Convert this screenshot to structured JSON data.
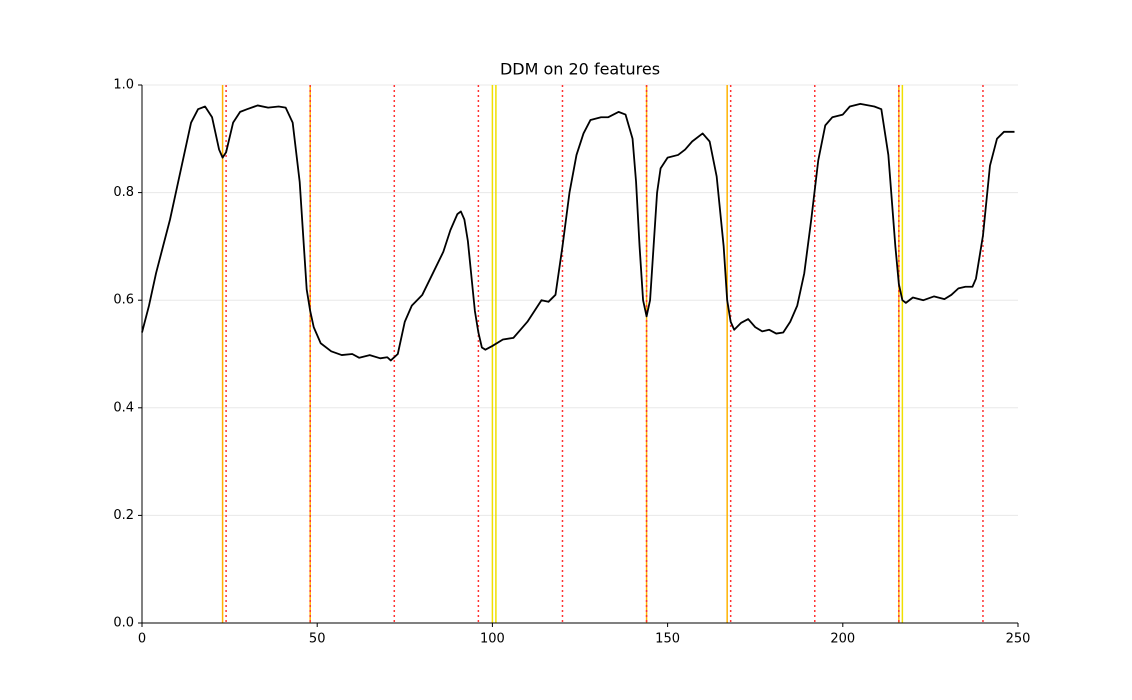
{
  "chart_data": {
    "type": "line",
    "title": "DDM on 20 features",
    "x": [
      0,
      2,
      4,
      6,
      8,
      10,
      12,
      14,
      16,
      18,
      20,
      22,
      23,
      24,
      26,
      28,
      30,
      33,
      36,
      39,
      41,
      43,
      45,
      47,
      48,
      49,
      51,
      54,
      57,
      60,
      62,
      65,
      68,
      70,
      71,
      73,
      75,
      77,
      80,
      83,
      86,
      88,
      90,
      91,
      92,
      93,
      95,
      96,
      97,
      98,
      100,
      103,
      106,
      108,
      110,
      112,
      114,
      116,
      118,
      120,
      122,
      124,
      126,
      128,
      131,
      133,
      136,
      138,
      140,
      141,
      142,
      143,
      144,
      145,
      146,
      147,
      148,
      150,
      153,
      155,
      157,
      160,
      162,
      164,
      166,
      167,
      168,
      169,
      171,
      173,
      175,
      177,
      179,
      181,
      183,
      185,
      187,
      189,
      191,
      193,
      195,
      197,
      200,
      202,
      205,
      209,
      211,
      213,
      215,
      216,
      217,
      218,
      220,
      223,
      226,
      229,
      231,
      233,
      235,
      237,
      238,
      240,
      242,
      244,
      246,
      249
    ],
    "series": [
      {
        "color": "#000000",
        "values": [
          0.54,
          0.59,
          0.65,
          0.7,
          0.75,
          0.81,
          0.87,
          0.93,
          0.955,
          0.96,
          0.94,
          0.88,
          0.865,
          0.875,
          0.93,
          0.95,
          0.955,
          0.962,
          0.958,
          0.96,
          0.958,
          0.93,
          0.82,
          0.62,
          0.58,
          0.55,
          0.52,
          0.505,
          0.498,
          0.5,
          0.493,
          0.498,
          0.492,
          0.494,
          0.488,
          0.5,
          0.56,
          0.59,
          0.61,
          0.65,
          0.69,
          0.73,
          0.76,
          0.765,
          0.75,
          0.71,
          0.58,
          0.54,
          0.512,
          0.508,
          0.515,
          0.527,
          0.53,
          0.545,
          0.56,
          0.58,
          0.6,
          0.597,
          0.61,
          0.7,
          0.8,
          0.87,
          0.91,
          0.935,
          0.94,
          0.94,
          0.95,
          0.945,
          0.9,
          0.82,
          0.7,
          0.6,
          0.57,
          0.6,
          0.7,
          0.8,
          0.845,
          0.865,
          0.87,
          0.88,
          0.895,
          0.91,
          0.895,
          0.83,
          0.7,
          0.6,
          0.56,
          0.545,
          0.558,
          0.565,
          0.55,
          0.542,
          0.545,
          0.538,
          0.54,
          0.56,
          0.59,
          0.65,
          0.75,
          0.86,
          0.925,
          0.94,
          0.945,
          0.96,
          0.965,
          0.96,
          0.955,
          0.87,
          0.7,
          0.63,
          0.6,
          0.595,
          0.605,
          0.6,
          0.607,
          0.602,
          0.61,
          0.622,
          0.625,
          0.625,
          0.64,
          0.72,
          0.85,
          0.9,
          0.913,
          0.913
        ]
      }
    ],
    "vlines": [
      {
        "x": 23,
        "color": "#ffb300",
        "style": "solid"
      },
      {
        "x": 48,
        "color": "#ffb300",
        "style": "solid"
      },
      {
        "x": 100,
        "color": "#f0e000",
        "style": "solid"
      },
      {
        "x": 101,
        "color": "#f0e000",
        "style": "solid"
      },
      {
        "x": 144,
        "color": "#ffb300",
        "style": "solid"
      },
      {
        "x": 167,
        "color": "#ffb300",
        "style": "solid"
      },
      {
        "x": 216,
        "color": "#ffb300",
        "style": "solid"
      },
      {
        "x": 217,
        "color": "#f0e000",
        "style": "solid"
      },
      {
        "x": 24,
        "color": "#ff3333",
        "style": "dotted"
      },
      {
        "x": 48,
        "color": "#ff3333",
        "style": "dotted"
      },
      {
        "x": 72,
        "color": "#ff3333",
        "style": "dotted"
      },
      {
        "x": 96,
        "color": "#ff3333",
        "style": "dotted"
      },
      {
        "x": 120,
        "color": "#ff3333",
        "style": "dotted"
      },
      {
        "x": 144,
        "color": "#ff3333",
        "style": "dotted"
      },
      {
        "x": 168,
        "color": "#ff3333",
        "style": "dotted"
      },
      {
        "x": 192,
        "color": "#ff3333",
        "style": "dotted"
      },
      {
        "x": 216,
        "color": "#ff3333",
        "style": "dotted"
      },
      {
        "x": 240,
        "color": "#ff3333",
        "style": "dotted"
      }
    ],
    "xlim": [
      0,
      250
    ],
    "ylim": [
      0,
      1
    ],
    "xticks": [
      0,
      50,
      100,
      150,
      200,
      250
    ],
    "yticks": [
      {
        "value": 0,
        "label": "0.0"
      },
      0.2,
      0.4,
      0.6,
      0.8,
      {
        "value": 1,
        "label": "1.0"
      }
    ],
    "grid": true
  }
}
